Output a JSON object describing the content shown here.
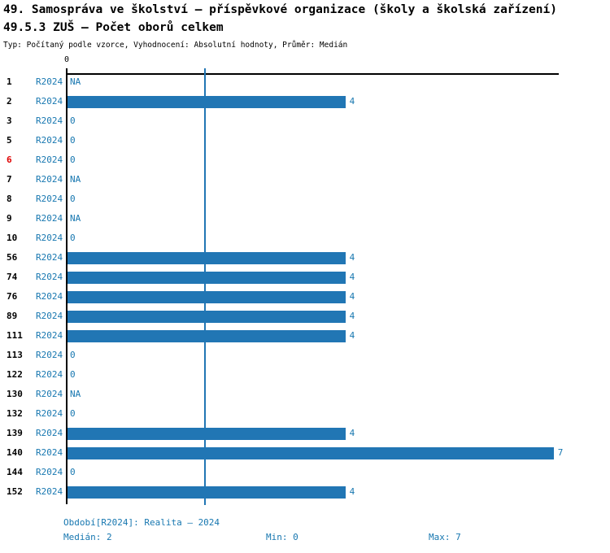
{
  "header": {
    "title_line1": "49. Samospráva ve školství – příspěvkové organizace (školy a školská zařízení)",
    "title_line2": "49.5.3 ZUŠ – Počet oborů celkem",
    "subtitle": "Typ: Počítaný podle vzorce, Vyhodnocení: Absolutní hodnoty, Průměr: Medián"
  },
  "colors": {
    "bar": "#2176B4",
    "accent_text": "#1777B0",
    "highlight_red": "#E00000",
    "axis_black": "#000000"
  },
  "chart_data": {
    "type": "bar",
    "orientation": "horizontal",
    "title": "49.5.3 ZUŠ – Počet oborů celkem",
    "axis_top_tick_label": "0",
    "xlim": [
      0,
      7
    ],
    "median_value": 2,
    "legend_position": "none",
    "grid": "median-line-only",
    "series_name": "R2024",
    "categories": [
      "1",
      "2",
      "3",
      "5",
      "6",
      "7",
      "8",
      "9",
      "10",
      "56",
      "74",
      "76",
      "89",
      "111",
      "113",
      "122",
      "130",
      "132",
      "139",
      "140",
      "144",
      "152"
    ],
    "rows": [
      {
        "id": "1",
        "period": "R2024",
        "value": null,
        "label": "NA",
        "highlight": false
      },
      {
        "id": "2",
        "period": "R2024",
        "value": 4,
        "label": "4",
        "highlight": false
      },
      {
        "id": "3",
        "period": "R2024",
        "value": 0,
        "label": "0",
        "highlight": false
      },
      {
        "id": "5",
        "period": "R2024",
        "value": 0,
        "label": "0",
        "highlight": false
      },
      {
        "id": "6",
        "period": "R2024",
        "value": 0,
        "label": "0",
        "highlight": true
      },
      {
        "id": "7",
        "period": "R2024",
        "value": null,
        "label": "NA",
        "highlight": false
      },
      {
        "id": "8",
        "period": "R2024",
        "value": 0,
        "label": "0",
        "highlight": false
      },
      {
        "id": "9",
        "period": "R2024",
        "value": null,
        "label": "NA",
        "highlight": false
      },
      {
        "id": "10",
        "period": "R2024",
        "value": 0,
        "label": "0",
        "highlight": false
      },
      {
        "id": "56",
        "period": "R2024",
        "value": 4,
        "label": "4",
        "highlight": false
      },
      {
        "id": "74",
        "period": "R2024",
        "value": 4,
        "label": "4",
        "highlight": false
      },
      {
        "id": "76",
        "period": "R2024",
        "value": 4,
        "label": "4",
        "highlight": false
      },
      {
        "id": "89",
        "period": "R2024",
        "value": 4,
        "label": "4",
        "highlight": false
      },
      {
        "id": "111",
        "period": "R2024",
        "value": 4,
        "label": "4",
        "highlight": false
      },
      {
        "id": "113",
        "period": "R2024",
        "value": 0,
        "label": "0",
        "highlight": false
      },
      {
        "id": "122",
        "period": "R2024",
        "value": 0,
        "label": "0",
        "highlight": false
      },
      {
        "id": "130",
        "period": "R2024",
        "value": null,
        "label": "NA",
        "highlight": false
      },
      {
        "id": "132",
        "period": "R2024",
        "value": 0,
        "label": "0",
        "highlight": false
      },
      {
        "id": "139",
        "period": "R2024",
        "value": 4,
        "label": "4",
        "highlight": false
      },
      {
        "id": "140",
        "period": "R2024",
        "value": 7,
        "label": "7",
        "highlight": false
      },
      {
        "id": "144",
        "period": "R2024",
        "value": 0,
        "label": "0",
        "highlight": false
      },
      {
        "id": "152",
        "period": "R2024",
        "value": 4,
        "label": "4",
        "highlight": false
      }
    ]
  },
  "footer": {
    "period_line": "Období[R2024]: Realita – 2024",
    "median_label": "Medián: 2",
    "min_label": "Min: 0",
    "max_label": "Max: 7"
  }
}
